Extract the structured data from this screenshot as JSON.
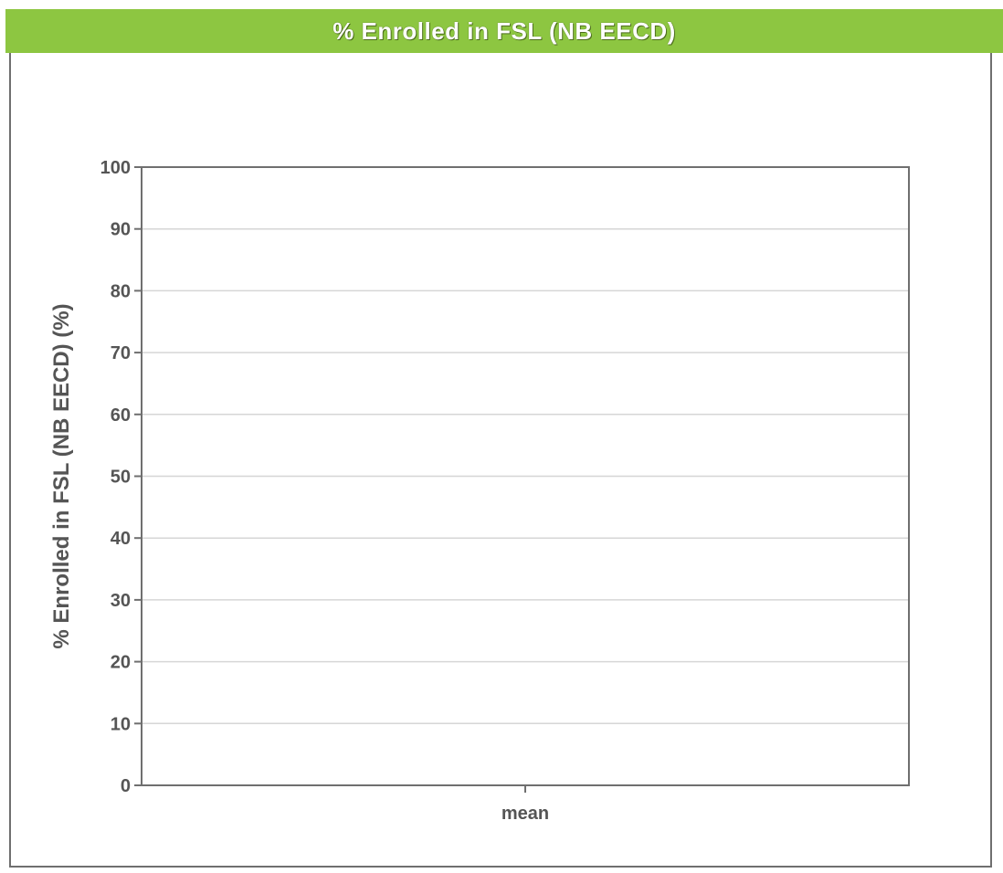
{
  "banner": {
    "title": "% Enrolled in FSL  (NB EECD)"
  },
  "colors": {
    "banner": "#8dc641",
    "axis": "#6f6f6f",
    "gridline": "#d6d6d6",
    "text": "#555555"
  },
  "chart_data": {
    "type": "bar",
    "categories": [
      "mean"
    ],
    "series": [],
    "xlabel": "",
    "ylabel": "% Enrolled in FSL  (NB EECD)  (%)",
    "ylim": [
      0,
      100
    ],
    "yticks": [
      0,
      10,
      20,
      30,
      40,
      50,
      60,
      70,
      80,
      90,
      100
    ],
    "grid": true,
    "legend": "none"
  }
}
